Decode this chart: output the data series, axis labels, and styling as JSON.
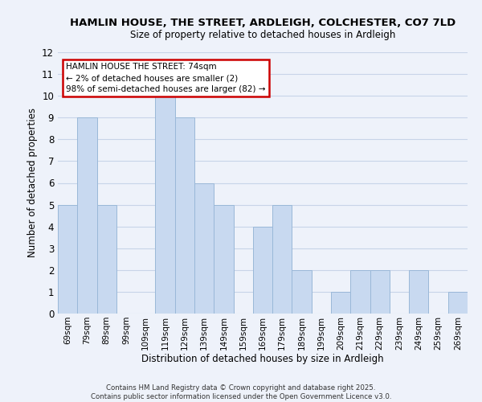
{
  "title_line1": "HAMLIN HOUSE, THE STREET, ARDLEIGH, COLCHESTER, CO7 7LD",
  "title_line2": "Size of property relative to detached houses in Ardleigh",
  "xlabel": "Distribution of detached houses by size in Ardleigh",
  "ylabel": "Number of detached properties",
  "bin_labels": [
    "69sqm",
    "79sqm",
    "89sqm",
    "99sqm",
    "109sqm",
    "119sqm",
    "129sqm",
    "139sqm",
    "149sqm",
    "159sqm",
    "169sqm",
    "179sqm",
    "189sqm",
    "199sqm",
    "209sqm",
    "219sqm",
    "229sqm",
    "239sqm",
    "249sqm",
    "259sqm",
    "269sqm"
  ],
  "bar_values": [
    5,
    9,
    5,
    0,
    0,
    10,
    9,
    6,
    5,
    0,
    4,
    5,
    2,
    0,
    1,
    2,
    2,
    0,
    2,
    0,
    1
  ],
  "bar_color": "#c8d9f0",
  "bar_edge_color": "#9ab8d8",
  "ylim": [
    0,
    12
  ],
  "yticks": [
    0,
    1,
    2,
    3,
    4,
    5,
    6,
    7,
    8,
    9,
    10,
    11,
    12
  ],
  "grid_color": "#c8d4e8",
  "annotation_title": "HAMLIN HOUSE THE STREET: 74sqm",
  "annotation_line2": "← 2% of detached houses are smaller (2)",
  "annotation_line3": "98% of semi-detached houses are larger (82) →",
  "annotation_box_edge": "#cc0000",
  "annotation_box_fill": "#ffffff",
  "footer_line1": "Contains HM Land Registry data © Crown copyright and database right 2025.",
  "footer_line2": "Contains public sector information licensed under the Open Government Licence v3.0.",
  "background_color": "#eef2fa"
}
